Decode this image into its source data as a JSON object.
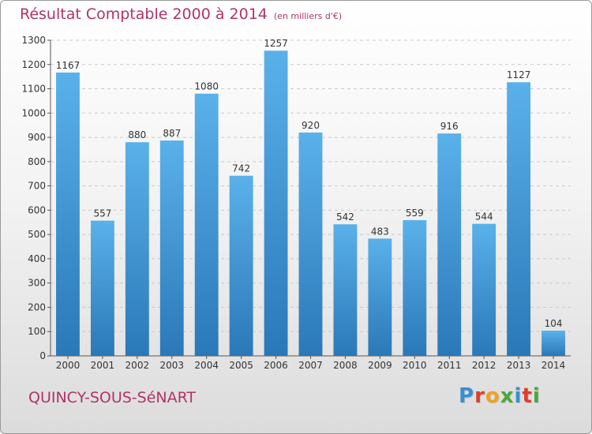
{
  "header": {
    "title": "Résultat Comptable 2000 à 2014",
    "subtitle": "(en milliers d'€)"
  },
  "footer": {
    "city": "QUINCY-SOUS-SéNART",
    "logo": "Proxiti"
  },
  "colors": {
    "title": "#b0336b",
    "bar_top": "#5ab1ea",
    "bar_bottom": "#2a78b8",
    "logo": [
      "#3a8fd0",
      "#e23c2c",
      "#f0a21c",
      "#49a83a",
      "#3a8fd0",
      "#e23c2c",
      "#49a83a"
    ]
  },
  "chart_data": {
    "type": "bar",
    "title": "Résultat Comptable 2000 à 2014",
    "subtitle": "(en milliers d'€)",
    "categories": [
      "2000",
      "2001",
      "2002",
      "2003",
      "2004",
      "2005",
      "2006",
      "2007",
      "2008",
      "2009",
      "2010",
      "2011",
      "2012",
      "2013",
      "2014"
    ],
    "values": [
      1167,
      557,
      880,
      887,
      1080,
      742,
      1257,
      920,
      542,
      483,
      559,
      916,
      544,
      1127,
      104
    ],
    "ylim": [
      0,
      1300
    ],
    "yticks": [
      0,
      100,
      200,
      300,
      400,
      500,
      600,
      700,
      800,
      900,
      1000,
      1100,
      1200,
      1300
    ],
    "grid": true,
    "xlabel": "",
    "ylabel": ""
  }
}
